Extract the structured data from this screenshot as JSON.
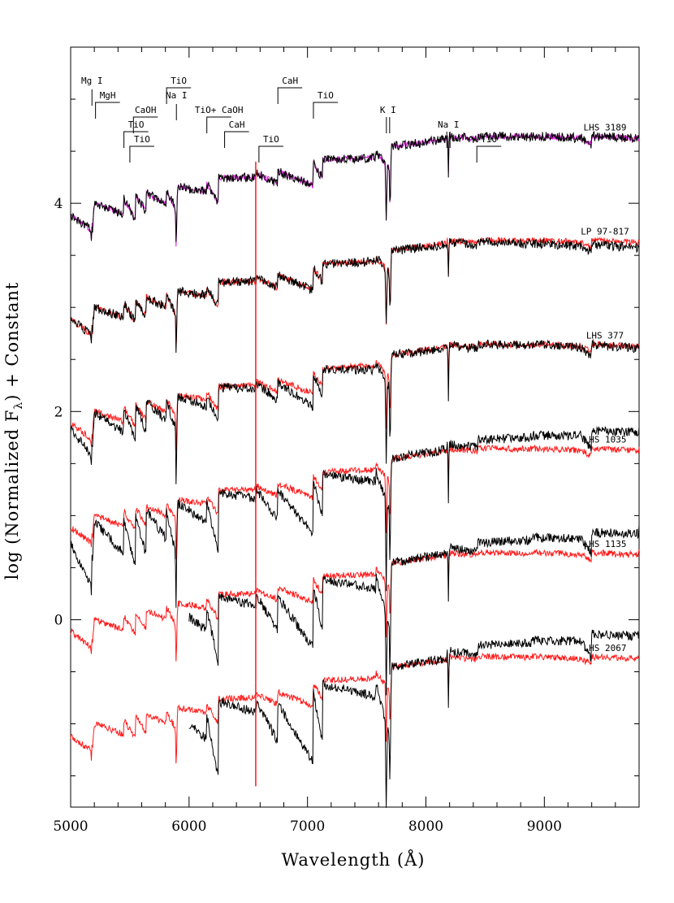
{
  "chart_data": {
    "type": "line",
    "title": "",
    "xlabel": "Wavelength (Å)",
    "ylabel_prefix": "log (Normalized F",
    "ylabel_sub": "λ",
    "ylabel_suffix": ") + Constant",
    "xlim": [
      5000,
      9800
    ],
    "ylim": [
      -1.8,
      5.5
    ],
    "x_ticks": [
      5000,
      6000,
      7000,
      8000,
      9000
    ],
    "x_tick_labels": [
      "5000",
      "6000",
      "7000",
      "8000",
      "9000"
    ],
    "y_ticks": [
      0,
      2,
      4
    ],
    "y_tick_labels": [
      "0",
      "2",
      "4"
    ],
    "grid": false,
    "colors": {
      "observed": "#000000",
      "model_red": "#ff1a1a",
      "model_magenta": "#e020e0"
    },
    "series": [
      {
        "name": "LHS 3189",
        "offset": 4.0,
        "model_color": "#e020e0",
        "obs_start": 5000,
        "depth": 1.0,
        "obs_red_tilt": 0.0
      },
      {
        "name": "LP 97-817",
        "offset": 3.0,
        "model_color": "#ff1a1a",
        "obs_start": 5000,
        "depth": 1.0,
        "obs_red_tilt": -0.05
      },
      {
        "name": "LHS 377",
        "offset": 2.0,
        "model_color": "#ff1a1a",
        "obs_start": 5000,
        "depth": 1.5,
        "obs_red_tilt": 0.0
      },
      {
        "name": "LHS 1035",
        "offset": 1.0,
        "model_color": "#ff1a1a",
        "obs_start": 5000,
        "depth": 2.4,
        "obs_red_tilt": 0.22
      },
      {
        "name": "LHS 1135",
        "offset": 0.0,
        "model_color": "#ff1a1a",
        "obs_start": 6000,
        "depth": 2.8,
        "obs_red_tilt": 0.25
      },
      {
        "name": "LHS 2067",
        "offset": -1.0,
        "model_color": "#ff1a1a",
        "obs_start": 6000,
        "depth": 3.2,
        "obs_red_tilt": 0.28
      }
    ],
    "annotations": [
      {
        "text": "Mg I",
        "x": 5180,
        "kind": "vline"
      },
      {
        "text": "MgH",
        "x": 5210,
        "kind": "bracket"
      },
      {
        "text": "CaOH",
        "x": 5530,
        "kind": "bracket"
      },
      {
        "text": "TiO",
        "x": 5450,
        "kind": "bracket"
      },
      {
        "text": "TiO",
        "x": 5500,
        "kind": "bracket"
      },
      {
        "text": "TiO",
        "x": 5810,
        "kind": "bracket"
      },
      {
        "text": "Na I",
        "x": 5893,
        "kind": "vline"
      },
      {
        "text": "TiO+ CaOH",
        "x": 6150,
        "kind": "bracket"
      },
      {
        "text": "CaH",
        "x": 6300,
        "kind": "bracket"
      },
      {
        "text": "TiO",
        "x": 6590,
        "kind": "bracket"
      },
      {
        "text": "CaH",
        "x": 6750,
        "kind": "bracket"
      },
      {
        "text": "TiO",
        "x": 7050,
        "kind": "bracket"
      },
      {
        "text": "K I",
        "x": 7680,
        "kind": "double"
      },
      {
        "text": "Na I",
        "x": 8190,
        "kind": "double"
      },
      {
        "text": "TiO",
        "x": 8430,
        "kind": "bracket"
      }
    ]
  }
}
